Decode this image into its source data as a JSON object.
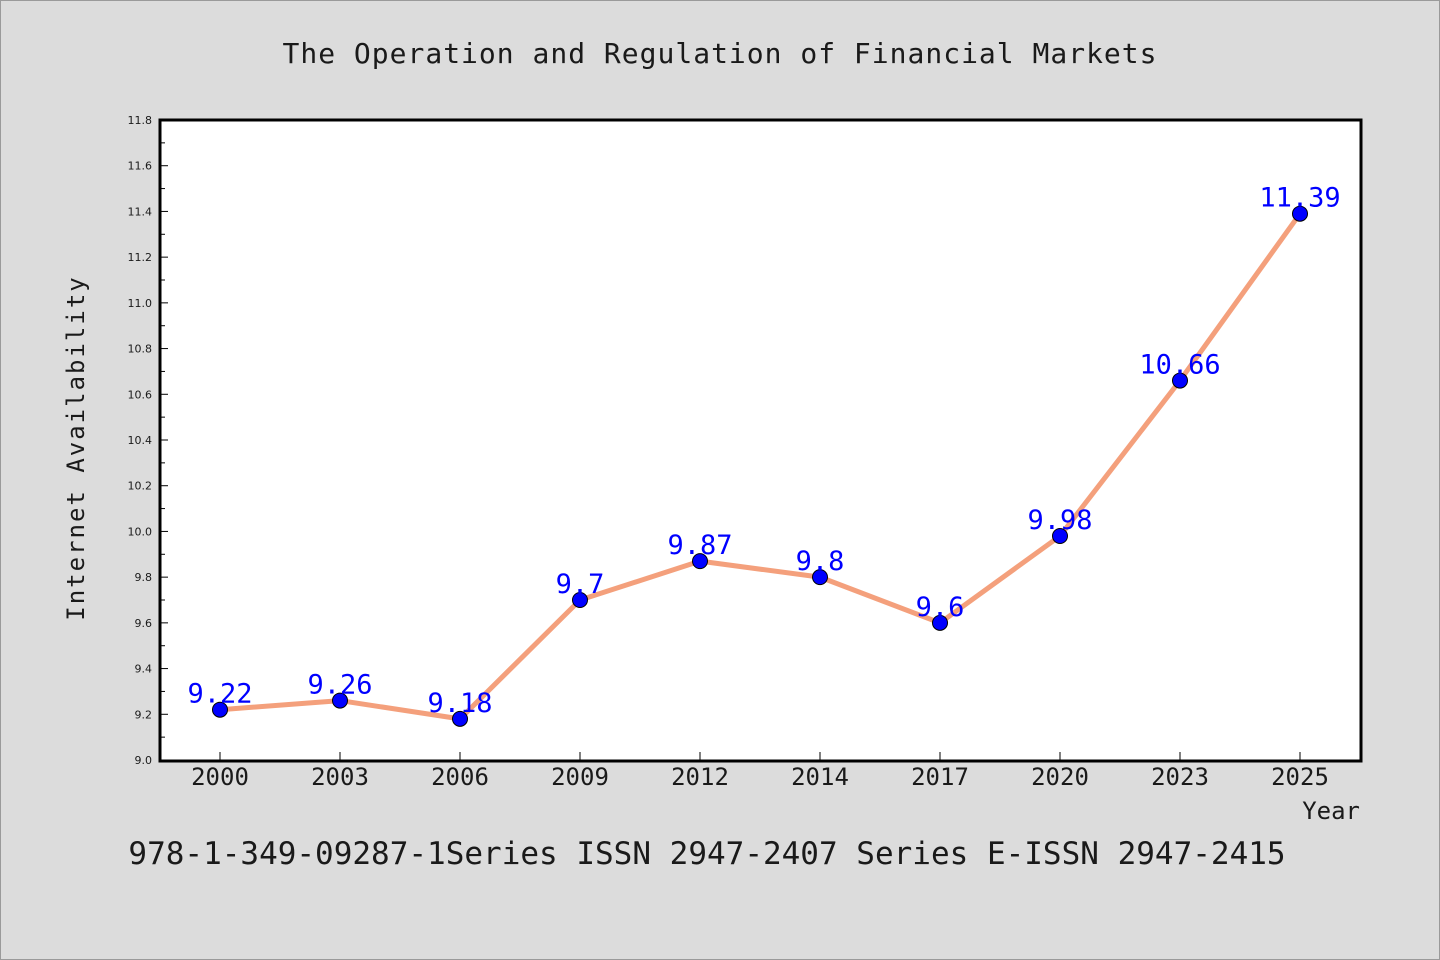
{
  "chart_data": {
    "type": "line",
    "title": "The Operation and Regulation of Financial Markets",
    "xlabel": "Year",
    "ylabel": "Internet Availability",
    "categories": [
      "2000",
      "2003",
      "2006",
      "2009",
      "2012",
      "2014",
      "2017",
      "2020",
      "2023",
      "2025"
    ],
    "series": [
      {
        "values": [
          9.22,
          9.26,
          9.18,
          9.7,
          9.87,
          9.8,
          9.6,
          9.98,
          10.66,
          11.39
        ],
        "data_labels": [
          "9.22",
          "9.26",
          "9.18",
          "9.7",
          "9.87",
          "9.8",
          "9.6",
          "9.98",
          "10.66",
          "11.39"
        ],
        "line_color": "#f4a07c",
        "marker_color": "#0000ff"
      }
    ],
    "ylim": [
      9.0,
      11.8
    ],
    "yticks": [
      "9.0",
      "9.2",
      "9.4",
      "9.6",
      "9.8",
      "10.0",
      "10.2",
      "10.4",
      "10.6",
      "10.8",
      "11.0",
      "11.2",
      "11.4",
      "11.6",
      "11.8"
    ],
    "grid": false,
    "legend": "none"
  },
  "footer": "978-1-349-09287-1Series ISSN 2947-2407 Series E-ISSN 2947-2415",
  "colors": {
    "background": "#dcdcdc",
    "plot_background": "#ffffff",
    "line": "#f4a07c",
    "markers": "#0000ff",
    "data_labels": "#0000ff"
  }
}
